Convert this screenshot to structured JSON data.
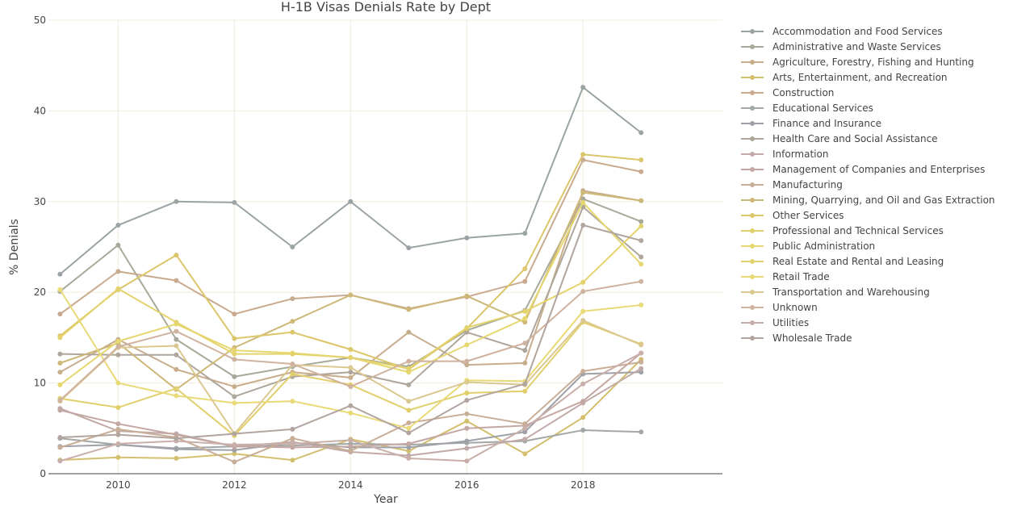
{
  "chart_data": {
    "type": "line",
    "title": "H-1B Visas Denials Rate by Dept",
    "xlabel": "Year",
    "ylabel": "% Denials",
    "xlim": [
      2008.8,
      2020.4
    ],
    "ylim": [
      0,
      50
    ],
    "x_ticks": [
      2010,
      2012,
      2014,
      2016,
      2018
    ],
    "y_ticks": [
      0,
      10,
      20,
      30,
      40,
      50
    ],
    "grid": true,
    "legend_position": "right",
    "x": [
      2009,
      2010,
      2011,
      2012,
      2013,
      2014,
      2015,
      2016,
      2017,
      2018,
      2019
    ],
    "series": [
      {
        "name": "Accommodation and Food Services",
        "color": "#9aa4a4",
        "values": [
          22.0,
          27.4,
          30.0,
          29.9,
          25.0,
          30.0,
          24.9,
          26.0,
          26.5,
          42.6,
          37.6
        ]
      },
      {
        "name": "Administrative and Waste Services",
        "color": "#a7aa99",
        "values": [
          20.1,
          25.2,
          14.8,
          10.7,
          11.8,
          12.8,
          11.8,
          15.8,
          18.0,
          30.3,
          27.8
        ]
      },
      {
        "name": "Agriculture, Forestry, Fishing and Hunting",
        "color": "#c8ad8c",
        "values": [
          11.2,
          14.8,
          11.5,
          9.6,
          11.2,
          10.6,
          15.6,
          12.0,
          12.2,
          31.2,
          30.1
        ]
      },
      {
        "name": "Arts, Entertainment, and Recreation",
        "color": "#d3bf6e",
        "values": [
          1.5,
          1.8,
          1.7,
          2.2,
          1.5,
          3.8,
          2.5,
          5.8,
          2.2,
          6.2,
          12.6
        ]
      },
      {
        "name": "Construction",
        "color": "#c9aa8f",
        "values": [
          17.6,
          22.3,
          21.3,
          17.6,
          19.3,
          19.7,
          18.2,
          19.5,
          21.2,
          34.6,
          33.3
        ]
      },
      {
        "name": "Educational Services",
        "color": "#a2a8a6",
        "values": [
          3.9,
          3.2,
          2.8,
          3.0,
          3.1,
          3.3,
          3.2,
          3.4,
          3.6,
          4.8,
          4.6
        ]
      },
      {
        "name": "Finance and Insurance",
        "color": "#9ea1a8",
        "values": [
          3.0,
          3.2,
          2.7,
          2.6,
          3.4,
          2.9,
          2.9,
          3.6,
          4.6,
          11.0,
          11.2
        ]
      },
      {
        "name": "Health Care and Social Assistance",
        "color": "#aea69a",
        "values": [
          13.2,
          13.1,
          13.1,
          8.5,
          10.7,
          11.2,
          9.8,
          15.6,
          13.6,
          29.4,
          23.9
        ]
      },
      {
        "name": "Information",
        "color": "#c2aaa8",
        "values": [
          7.2,
          4.7,
          4.4,
          3.0,
          3.5,
          2.4,
          2.0,
          2.8,
          3.8,
          7.8,
          11.6
        ]
      },
      {
        "name": "Management of Companies and Enterprises",
        "color": "#c4a7a3",
        "values": [
          7.0,
          5.5,
          4.3,
          3.0,
          2.9,
          3.0,
          3.3,
          5.0,
          5.3,
          8.0,
          13.3
        ]
      },
      {
        "name": "Manufacturing",
        "color": "#c8ae97",
        "values": [
          2.9,
          4.9,
          4.0,
          1.3,
          3.9,
          2.5,
          5.6,
          6.6,
          5.5,
          11.3,
          12.3
        ]
      },
      {
        "name": "Mining, Quarrying, and Oil and Gas Extraction",
        "color": "#cdb878",
        "values": [
          12.2,
          14.4,
          9.3,
          13.9,
          16.8,
          19.7,
          18.1,
          19.6,
          16.7,
          31.0,
          30.1
        ]
      },
      {
        "name": "Other Services",
        "color": "#dcc66a",
        "values": [
          15.2,
          20.3,
          24.1,
          14.9,
          15.6,
          13.7,
          11.5,
          16.0,
          22.6,
          35.2,
          34.6
        ]
      },
      {
        "name": "Professional and Technical Services",
        "color": "#e1cf6b",
        "values": [
          8.3,
          7.3,
          9.4,
          4.2,
          11.0,
          9.8,
          7.0,
          8.9,
          9.1,
          16.7,
          14.3
        ]
      },
      {
        "name": "Public Administration",
        "color": "#e6d770",
        "values": [
          9.8,
          14.6,
          16.5,
          13.6,
          13.3,
          12.8,
          11.2,
          14.2,
          17.1,
          29.9,
          23.1
        ]
      },
      {
        "name": "Real Estate and Rental and Leasing",
        "color": "#e4d36d",
        "values": [
          15.0,
          20.4,
          16.7,
          13.2,
          13.2,
          12.8,
          11.6,
          16.1,
          17.9,
          21.1,
          27.3
        ]
      },
      {
        "name": "Retail Trade",
        "color": "#e9d977",
        "values": [
          20.3,
          10.0,
          8.6,
          7.8,
          8.0,
          6.7,
          5.0,
          10.3,
          10.2,
          17.9,
          18.6
        ]
      },
      {
        "name": "Transportation and Warehousing",
        "color": "#dbc891",
        "values": [
          8.0,
          13.9,
          14.1,
          4.4,
          12.0,
          11.7,
          8.0,
          10.1,
          9.8,
          16.9,
          14.2
        ]
      },
      {
        "name": "Unknown",
        "color": "#cfb29f",
        "values": [
          8.1,
          14.0,
          15.7,
          12.6,
          12.1,
          9.6,
          12.4,
          12.4,
          14.4,
          20.1,
          21.2
        ]
      },
      {
        "name": "Utilities",
        "color": "#c8afa9",
        "values": [
          1.4,
          3.3,
          3.6,
          3.2,
          3.3,
          3.7,
          1.7,
          1.4,
          5.0,
          9.9,
          13.3
        ]
      },
      {
        "name": "Wholesale Trade",
        "color": "#b2a59f",
        "values": [
          4.0,
          4.3,
          3.9,
          4.4,
          4.9,
          7.5,
          4.5,
          8.1,
          9.9,
          27.4,
          25.7
        ]
      }
    ]
  }
}
